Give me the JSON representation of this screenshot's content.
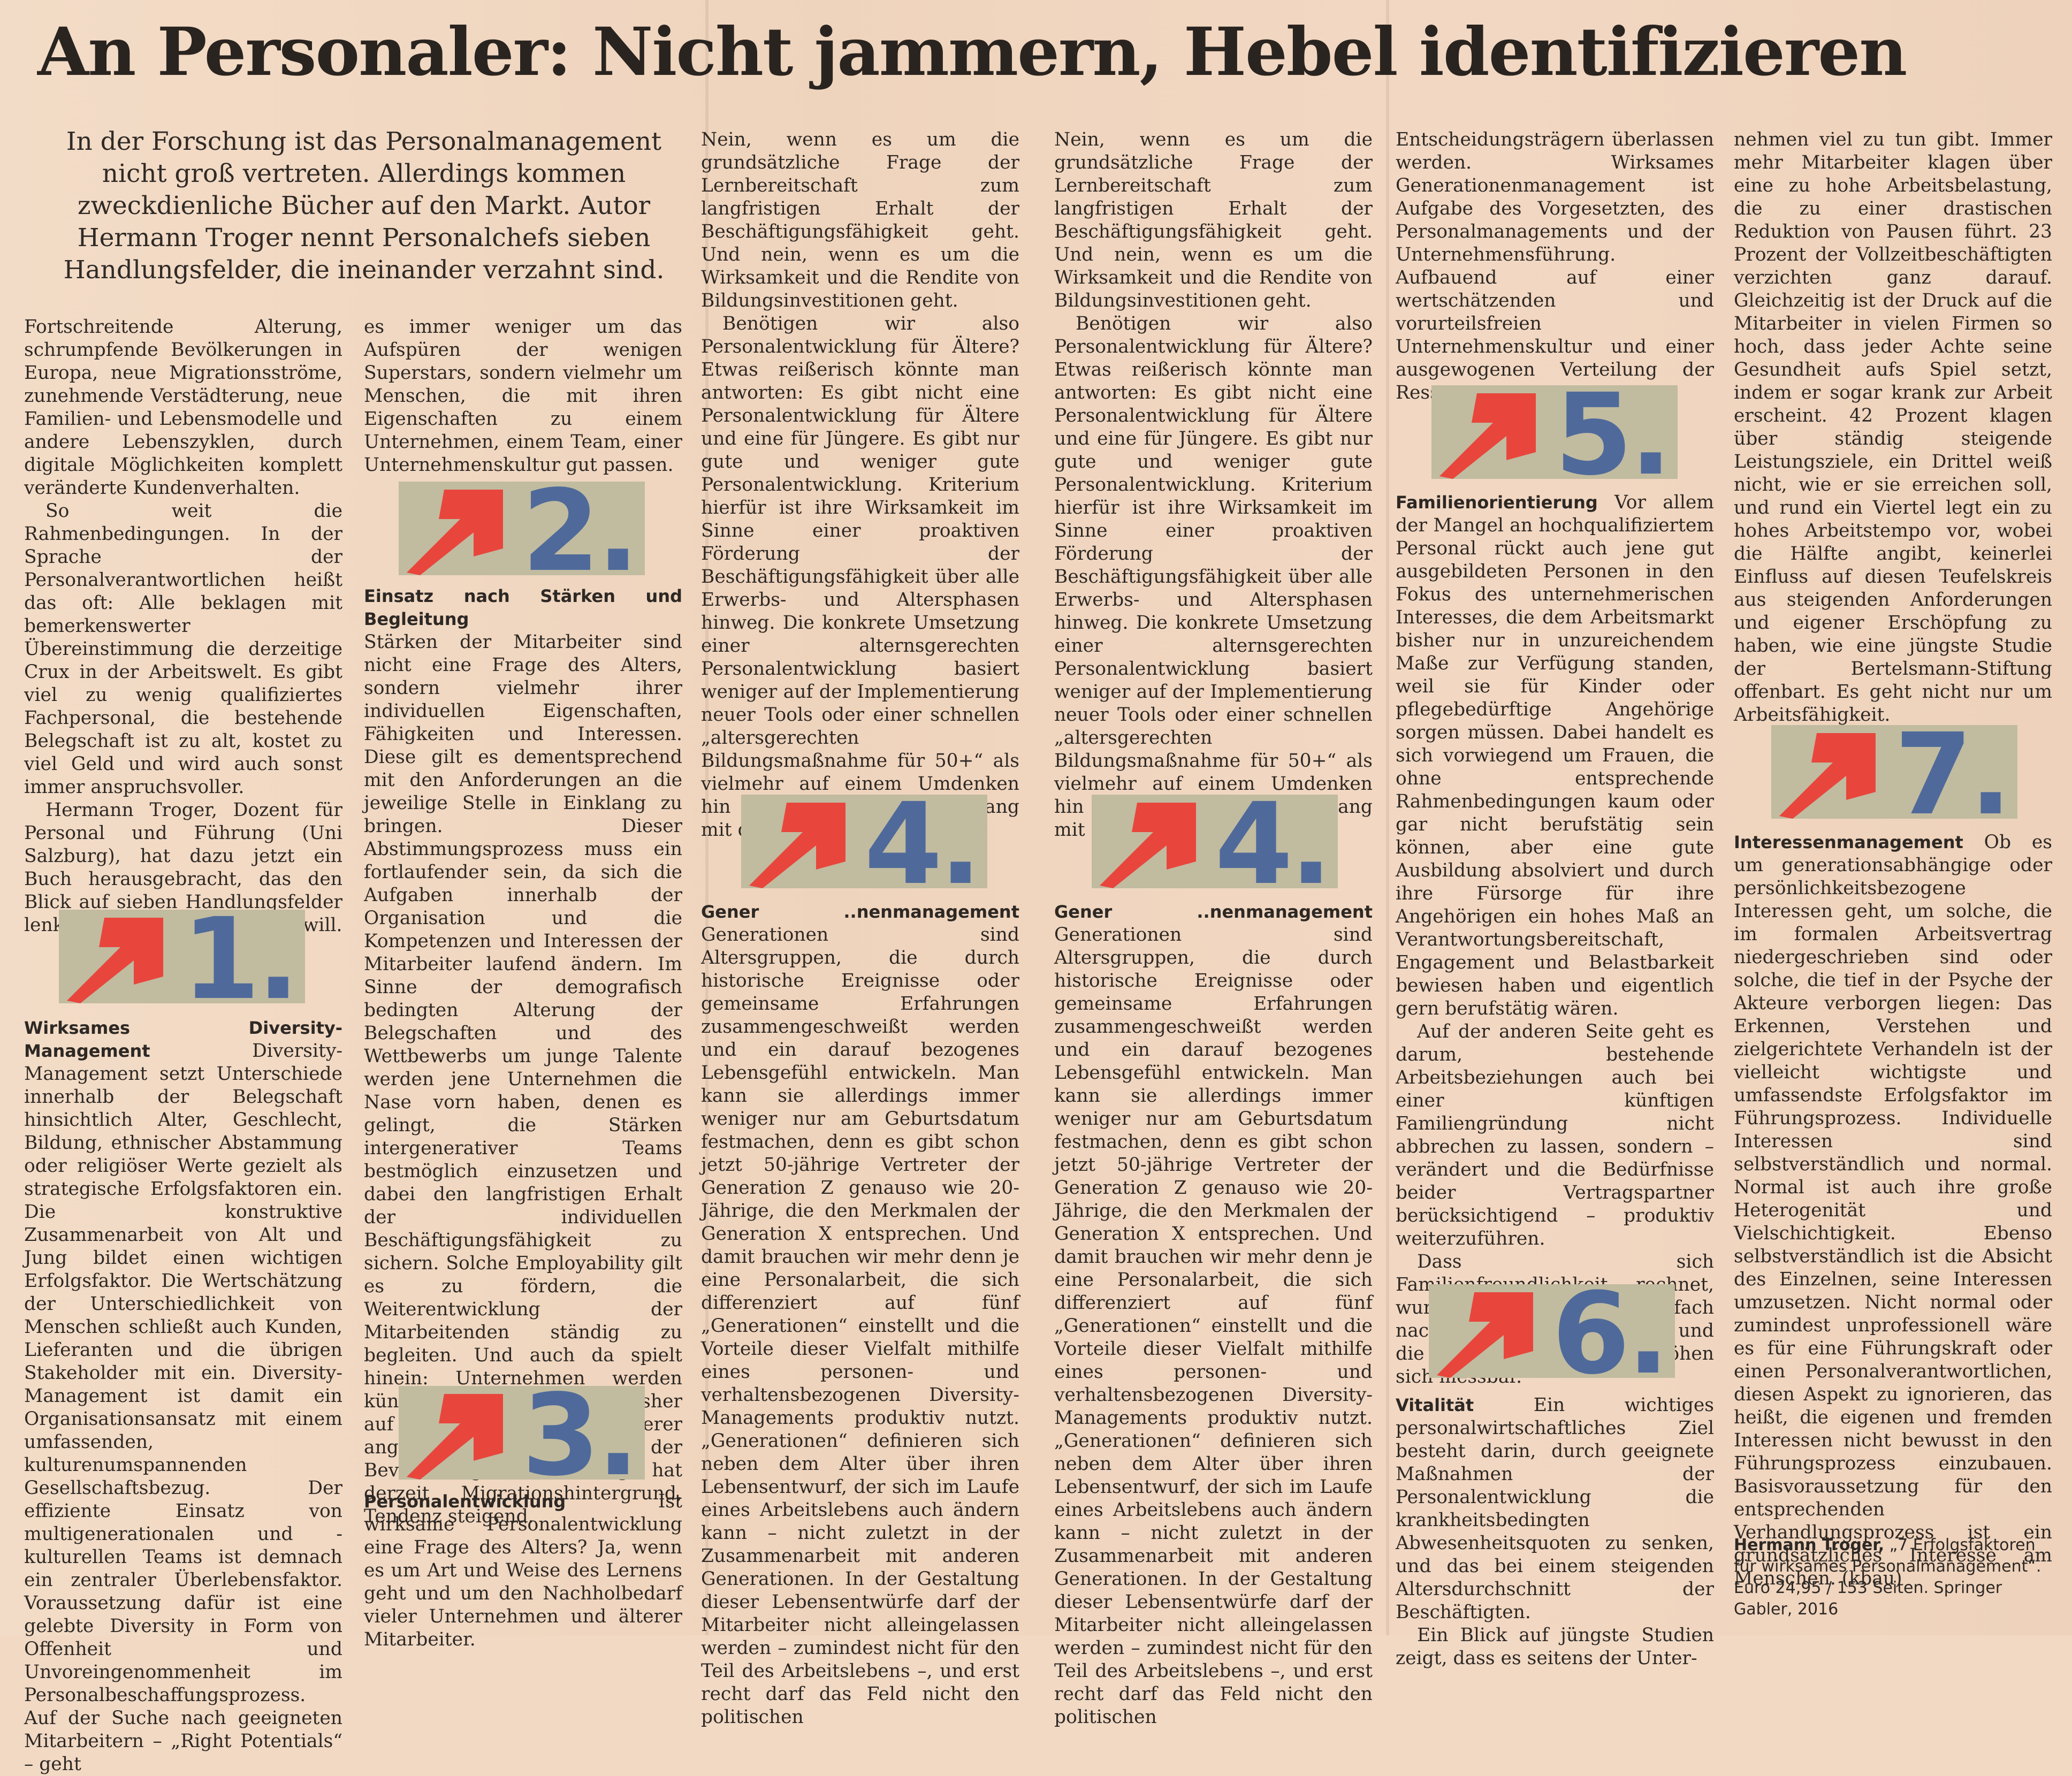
{
  "headline": "An Personaler: Nicht jammern, Hebel identifizieren",
  "lead": "In der Forschung ist das Personalmanagement nicht groß vertreten. Allerdings kommen zweckdienliche Bücher auf den Markt. Autor Hermann Troger nennt Personalchefs sieben Handlungsfelder, die ineinander verzahnt sind.",
  "intro": [
    "Fortschreitende Alterung, schrumpfende Bevölkerungen in Europa, neue Migrationsströme, zunehmende Verstädterung, neue Familien- und Lebensmodelle und andere Lebenszyklen, durch digitale Möglichkeiten komplett veränderte Kundenverhalten.",
    "So weit die Rahmenbedingungen. In der Sprache der Personalverantwortlichen heißt das oft: Alle beklagen mit bemerkenswerter Übereinstimmung die derzeitige Crux in der Arbeitswelt. Es gibt viel zu wenig qualifiziertes Fachpersonal, die bestehende Belegschaft ist zu alt, kostet zu viel Geld und wird auch sonst immer anspruchsvoller.",
    "Hermann Troger, Dozent für Personal und Führung (Uni Salzburg), hat dazu jetzt ein Buch herausgebracht, das den Blick auf sieben Handlungsfelder lenken und zum Tun anleiten will."
  ],
  "sections": {
    "s1": {
      "num": "1.",
      "title": "Wirksames Diversity-Management",
      "text": "Diversity-Management setzt Unterschiede innerhalb der Belegschaft hinsichtlich Alter, Geschlecht, Bildung, ethnischer Abstammung oder religiöser Werte gezielt als strategische Erfolgsfaktoren ein. Die konstruktive Zusammenarbeit von Alt und Jung bildet einen wichtigen Erfolgsfaktor. Die Wertschätzung der Unterschiedlichkeit von Menschen schließt auch Kunden, Lieferanten und die übrigen Stakeholder mit ein. Diversity-Management ist damit ein Organisationsansatz mit einem umfassenden, kulturenumspannenden Gesellschaftsbezug. Der effiziente Einsatz von multigenerationalen und -kulturellen Teams ist demnach ein zentraler Überlebensfaktor. Voraussetzung dafür ist eine gelebte Diversity in Form von Offenheit und Unvoreingenommenheit im Personalbeschaffungsprozess. Auf der Suche nach geeigneten Mitarbeitern – „Right Potentials“ – geht"
    },
    "s1cont": "es immer weniger um das Aufspüren der wenigen Superstars, sondern vielmehr um Menschen, die mit ihren Eigenschaften zu einem Unternehmen, einem Team, einer Unternehmenskultur gut passen.",
    "s2": {
      "num": "2.",
      "title": "Einsatz nach Stärken und Begleitung",
      "text": "Stärken der Mitarbeiter sind nicht eine Frage des Alters, sondern vielmehr ihrer individuellen Eigenschaften, Fähigkeiten und Interessen. Diese gilt es dementsprechend mit den Anforderungen an die jeweilige Stelle in Einklang zu bringen. Dieser Abstimmungsprozess muss ein fortlaufender sein, da sich die Aufgaben innerhalb der Organisation und die Kompetenzen und Interessen der Mitarbeiter laufend ändern. Im Sinne der demografisch bedingten Alterung der Belegschaften und des Wettbewerbs um junge Talente werden jene Unternehmen die Nase vorn haben, denen es gelingt, die Stärken intergenerativer Teams bestmöglich einzusetzen und dabei den langfristigen Erhalt der individuellen Beschäftigungsfähigkeit zu sichern. Solche Employability gilt es zu fördern, die Weiterentwicklung der Mitarbeitenden ständig zu begleiten. Und auch da spielt hinein: Unternehmen werden künftig noch stärker als bisher auf qualifizierte Zuwanderer angewiesen sein. Ein Fünftel der Bevölkerung in Mitteleuropa hat derzeit Migrationshintergrund, Tendenz steigend."
    },
    "s3": {
      "num": "3.",
      "title": "Personalentwicklung",
      "text": "Ist wirksame Personalentwicklung eine Frage des Alters? Ja, wenn es um Art und Weise des Lernens geht und um den Nachholbedarf vieler Unternehmen und älterer Mitarbeiter."
    },
    "s3cont": [
      "Nein, wenn es um die grundsätzliche Frage der Lernbereitschaft zum langfristigen Erhalt der Beschäftigungsfähigkeit geht. Und nein, wenn es um die Wirksamkeit und die Rendite von Bildungsinvestitionen geht.",
      "Benötigen wir also Personalentwicklung für Ältere? Etwas reißerisch könnte man antworten: Es gibt nicht eine Personalentwicklung für Ältere und eine für Jüngere. Es gibt nur gute und weniger gute Personalentwicklung. Kriterium hierfür ist ihre Wirksamkeit im Sinne einer proaktiven Förderung der Beschäftigungsfähigkeit über alle Erwerbs- und Altersphasen hinweg. Die konkrete Umsetzung einer alternsgerechten Personalentwicklung basiert weniger auf der Implementierung neuer Tools oder einer schnellen „altersgerechten Bildungsmaßnahme für 50+“ als vielmehr auf einem Umdenken hin zu einem anderen Umgang mit den Lernerwartungen."
    ],
    "s4": {
      "num": "4.",
      "title": "Gener ..nenmanagement",
      "text": "Generationen sind Altersgruppen, die durch historische Ereignisse oder gemeinsame Erfahrungen zusammengeschweißt werden und ein darauf bezogenes Lebensgefühl entwickeln. Man kann sie allerdings immer weniger nur am Geburtsdatum festmachen, denn es gibt schon jetzt 50-jährige Vertreter der Generation Z genauso wie 20-Jährige, die den Merkmalen der Generation X entsprechen. Und damit brauchen wir mehr denn je eine Personalarbeit, die sich differenziert auf fünf „Generationen“ einstellt und die Vorteile dieser Vielfalt mithilfe eines personen- und verhaltensbezogenen Diversity-Managements produktiv nutzt. „Generationen“ definieren sich neben dem Alter über ihren Lebensentwurf, der sich im Laufe eines Arbeitslebens auch ändern kann – nicht zuletzt in der Zusammenarbeit mit anderen Generationen. In der Gestaltung dieser Lebensentwürfe darf der Mitarbeiter nicht alleingelassen werden – zumindest nicht für den Teil des Arbeitslebens –, und erst recht darf das Feld nicht den politischen"
    },
    "s4cont": "Entscheidungsträgern überlassen werden. Wirksames Generationenmanagement ist Aufgabe des Vorgesetzten, des Personalmanagements und der Unternehmensführung. Aufbauend auf einer wertschätzenden und vorurteilsfreien Unternehmenskultur und einer ausgewogenen Verteilung der Ressourcen.",
    "s5": {
      "num": "5.",
      "title": "Familienorientierung",
      "text": "Vor allem der Mangel an hochqualifiziertem Personal rückt auch jene gut ausgebildeten Personen in den Fokus des unternehmerischen Interesses, die dem Arbeitsmarkt bisher nur in unzureichendem Maße zur Verfügung standen, weil sie für Kinder oder pflegebedürftige Angehörige sorgen müssen. Dabei handelt es sich vorwiegend um Frauen, die ohne entsprechende Rahmenbedingungen kaum oder gar nicht berufstätig sein können, aber eine gute Ausbildung absolviert und durch ihre Fürsorge für ihre Angehörigen ein hohes Maß an Verantwortungsbereitschaft, Engagement und Belastbarkeit bewiesen haben und eigentlich gern berufstätig wären.",
      "more": [
        "Auf der anderen Seite geht es darum, bestehende Arbeitsbeziehungen auch bei einer künftigen Familiengründung nicht abbrechen zu lassen, sondern – verändert und die Bedürfnisse beider Vertragspartner berücksichtigend – produktiv weiterzuführen.",
        "Dass sich Familienfreundlichkeit rechnet, wurde inzwischen vielfach nachgewiesen, die Loyalität und die emotionale Bindung erhöhen sich messbar."
      ]
    },
    "s6": {
      "num": "6.",
      "title": "Vitalität",
      "text": "Ein wichtiges personalwirtschaftliches Ziel besteht darin, durch geeignete Maßnahmen der Personalentwicklung die krankheitsbedingten Abwesenheitsquoten zu senken, und das bei einem steigenden Altersdurchschnitt der Beschäftigten.",
      "more": "Ein Blick auf jüngste Studien zeigt, dass es seitens der Unter-"
    },
    "s6cont": "nehmen viel zu tun gibt. Immer mehr Mitarbeiter klagen über eine zu hohe Arbeitsbelastung, die zu einer drastischen Reduktion von Pausen führt. 23 Prozent der Vollzeitbeschäftigten verzichten ganz darauf. Gleichzeitig ist der Druck auf die Mitarbeiter in vielen Firmen so hoch, dass jeder Achte seine Gesundheit aufs Spiel setzt, indem er sogar krank zur Arbeit erscheint. 42 Prozent klagen über ständig steigende Leistungsziele, ein Drittel weiß nicht, wie er sie erreichen soll, und rund ein Viertel legt ein zu hohes Arbeitstempo vor, wobei die Hälfte angibt, keinerlei Einfluss auf diesen Teufelskreis aus steigenden Anforderungen und eigener Erschöpfung zu haben, wie eine jüngste Studie der Bertelsmann-Stiftung offenbart. Es geht nicht nur um Arbeitsfähigkeit.",
    "s7": {
      "num": "7.",
      "title": "Interessenmanagement",
      "text": "Ob es um generationsabhängige oder persönlichkeitsbezogene Interessen geht, um solche, die im formalen Arbeitsvertrag niedergeschrieben sind oder solche, die tief in der Psyche der Akteure verborgen liegen: Das Erkennen, Verstehen und zielgerichtete Verhandeln ist der vielleicht wichtigste und umfassendste Erfolgsfaktor im Führungsprozess. Individuelle Interessen sind selbstverständlich und normal. Normal ist auch ihre große Heterogenität und Vielschichtigkeit. Ebenso selbstverständlich ist die Absicht des Einzelnen, seine Interessen umzusetzen. Nicht normal oder zumindest unprofessionell wäre es für eine Führungskraft oder einen Personalverantwortlichen, diesen Aspekt zu ignorieren, das heißt, die eigenen und fremden Interessen nicht bewusst in den Führungsprozess einzubauen. Basisvoraussetzung für den entsprechenden Verhandlungsprozess ist ein grundsätzliches Interesse am Menschen. (kbau)"
    }
  },
  "credit": {
    "author": "Hermann Troger,",
    "book": "„7 Erfolgsfaktoren für wirksames Personalmanagement“.",
    "info": "Euro 24,95 / 153 Seiten. Springer Gabler, 2016"
  },
  "colors": {
    "arrow": "#e8463c",
    "box": "#c1bba0",
    "number": "#4f6a9a",
    "paper": "#f1d9c4"
  }
}
